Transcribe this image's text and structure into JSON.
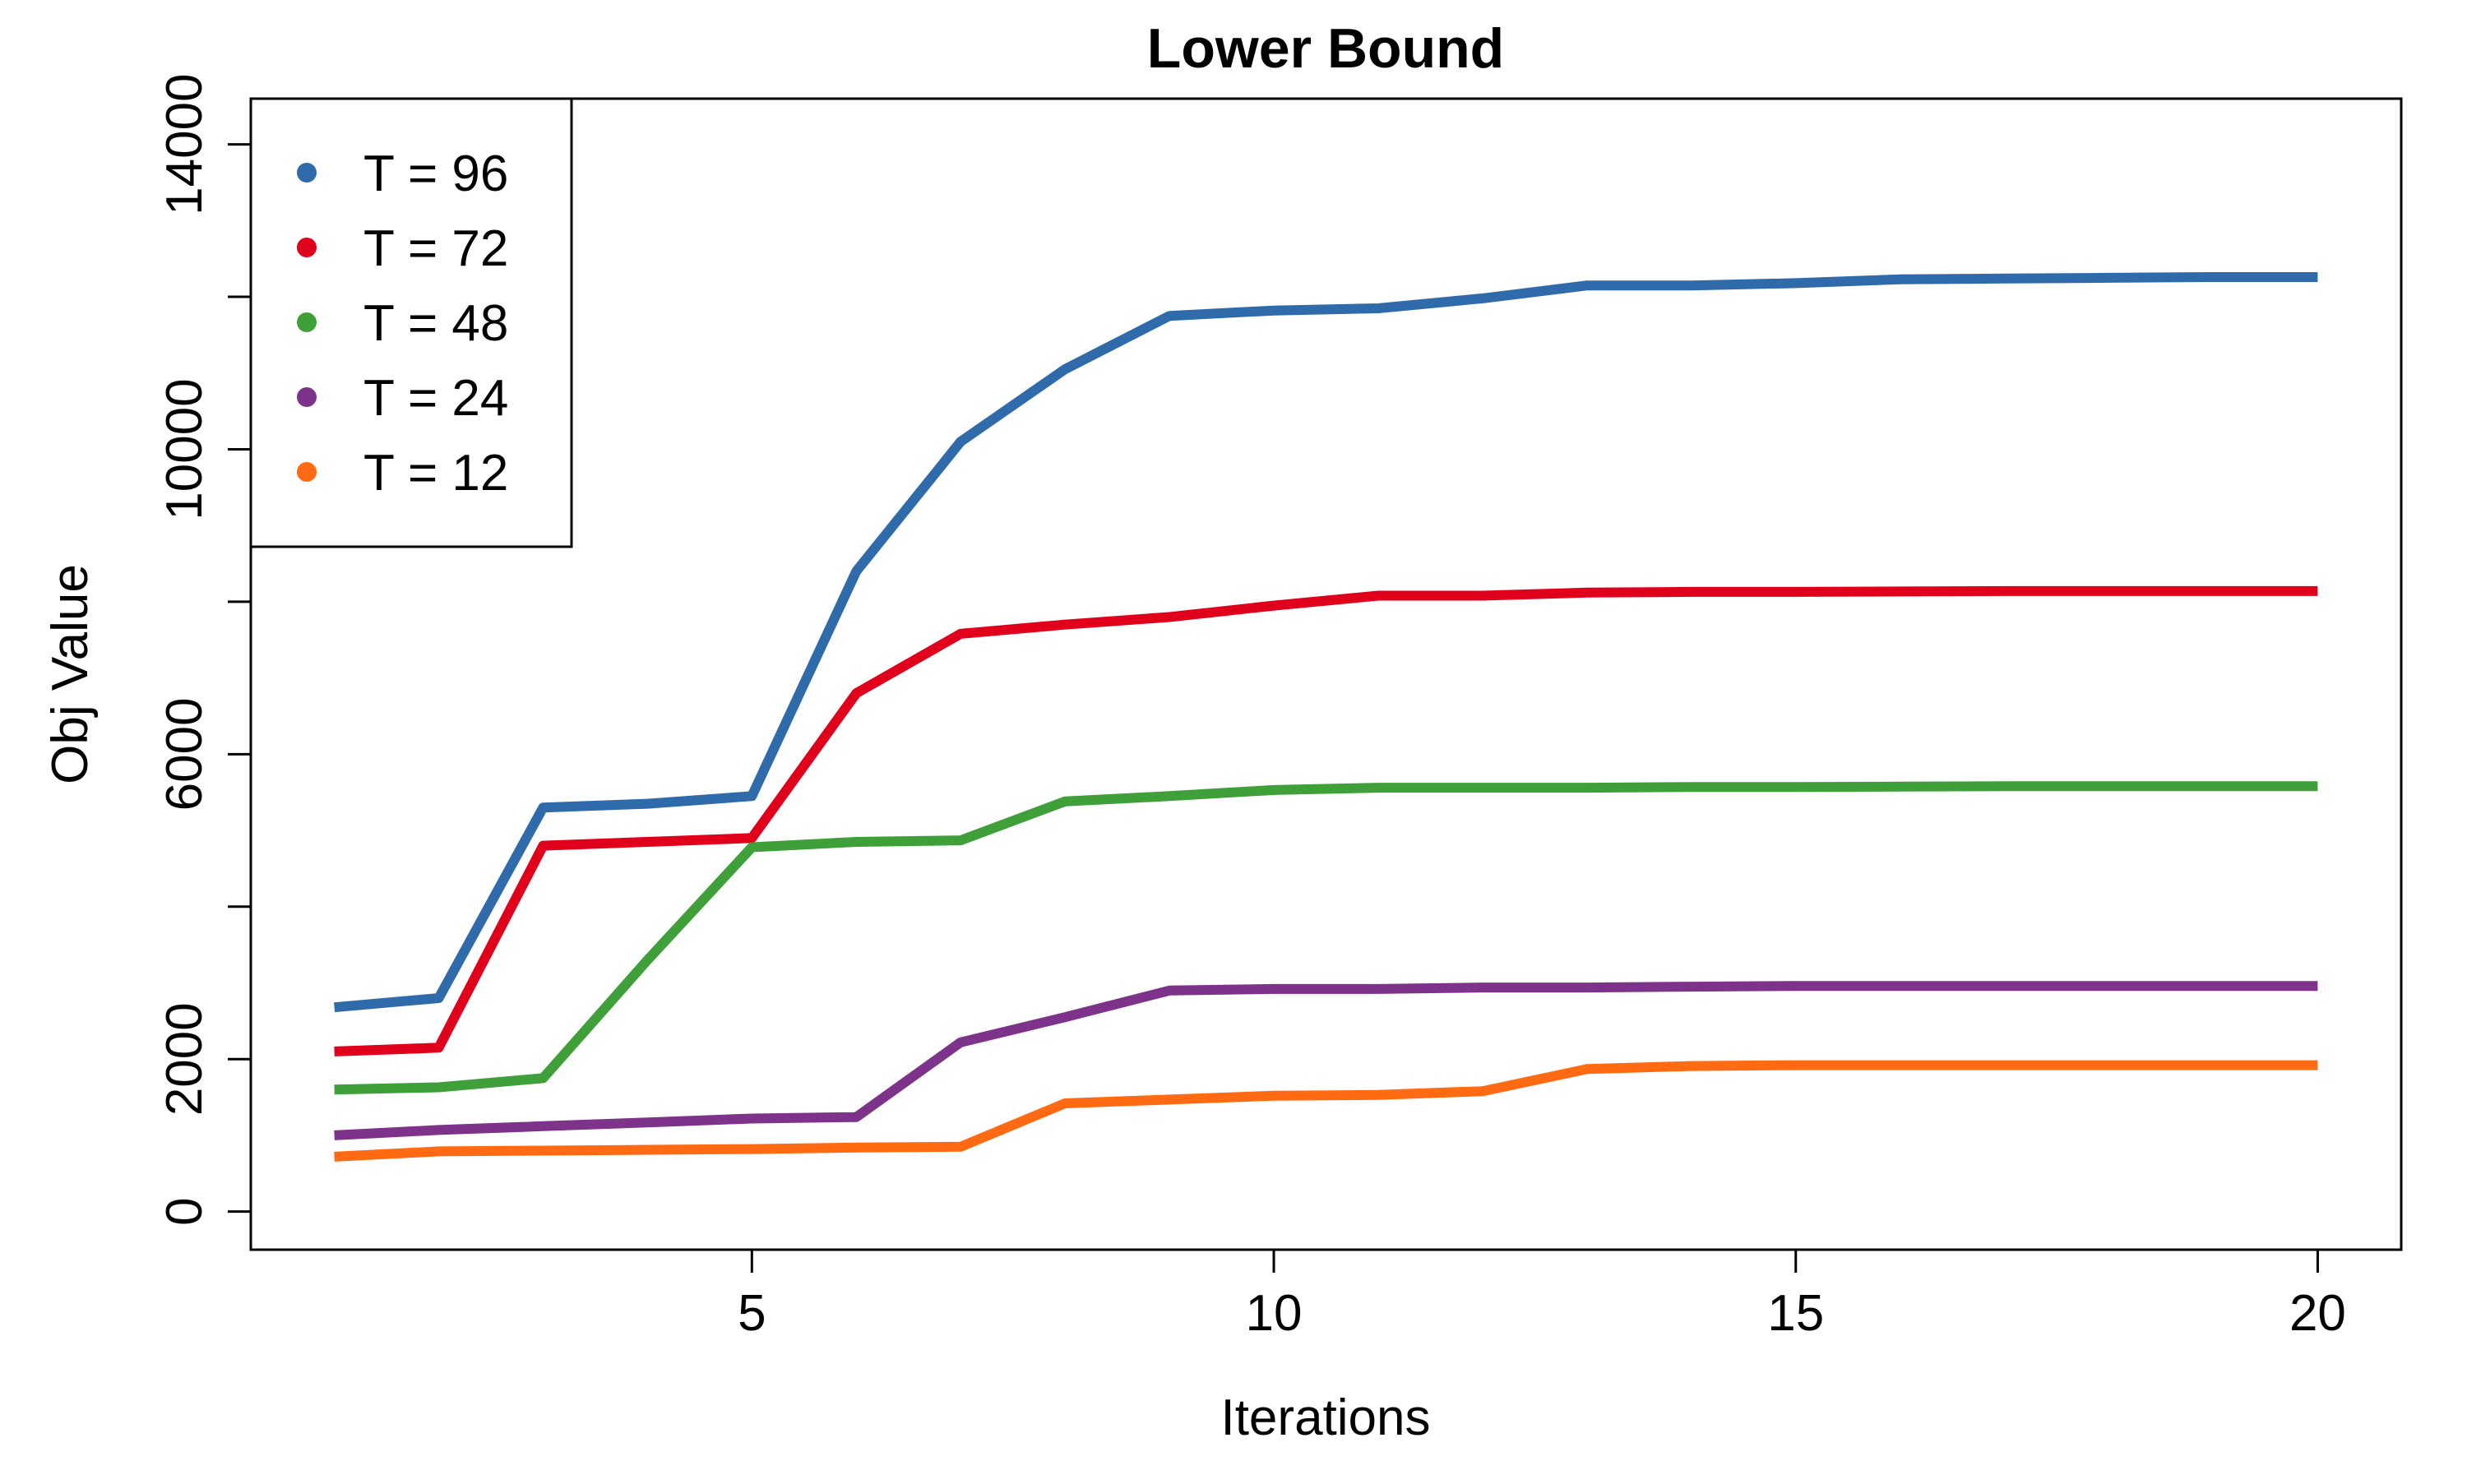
{
  "chart_data": {
    "type": "line",
    "title": "Lower Bound",
    "xlabel": "Iterations",
    "ylabel": "Obj Value",
    "xlim": [
      0.2,
      20.8
    ],
    "ylim": [
      -500,
      14600
    ],
    "x_ticks": [
      5,
      10,
      15,
      20
    ],
    "y_ticks": [
      0,
      2000,
      4000,
      6000,
      8000,
      10000,
      12000,
      14000
    ],
    "y_tick_labels": [
      "0",
      "2000",
      "",
      "6000",
      "",
      "10000",
      "",
      "14000"
    ],
    "x": [
      1,
      2,
      3,
      4,
      5,
      6,
      7,
      8,
      9,
      10,
      11,
      12,
      13,
      14,
      15,
      16,
      17,
      18,
      19,
      20
    ],
    "legend_position": "top-left",
    "series": [
      {
        "name": "T = 96",
        "color": "#2F6BAA",
        "values": [
          2680,
          2800,
          5300,
          5350,
          5450,
          8400,
          10100,
          11050,
          11750,
          11820,
          11850,
          11980,
          12150,
          12150,
          12180,
          12230,
          12240,
          12250,
          12260,
          12260
        ]
      },
      {
        "name": "T = 72",
        "color": "#E0001B",
        "values": [
          2100,
          2150,
          4800,
          4850,
          4900,
          6800,
          7580,
          7700,
          7800,
          7950,
          8080,
          8080,
          8120,
          8130,
          8130,
          8135,
          8140,
          8140,
          8140,
          8140
        ]
      },
      {
        "name": "T = 48",
        "color": "#3FA03A",
        "values": [
          1600,
          1630,
          1750,
          3300,
          4780,
          4850,
          4870,
          5380,
          5450,
          5530,
          5560,
          5560,
          5560,
          5570,
          5570,
          5575,
          5580,
          5580,
          5580,
          5580
        ]
      },
      {
        "name": "T = 24",
        "color": "#7E338A",
        "values": [
          1000,
          1070,
          1120,
          1170,
          1220,
          1240,
          2220,
          2550,
          2900,
          2920,
          2920,
          2940,
          2940,
          2950,
          2960,
          2960,
          2960,
          2960,
          2960,
          2960
        ]
      },
      {
        "name": "T = 12",
        "color": "#FF6A13",
        "values": [
          720,
          790,
          800,
          810,
          820,
          840,
          850,
          1420,
          1470,
          1520,
          1530,
          1580,
          1870,
          1910,
          1920,
          1920,
          1920,
          1920,
          1920,
          1920
        ]
      }
    ]
  }
}
